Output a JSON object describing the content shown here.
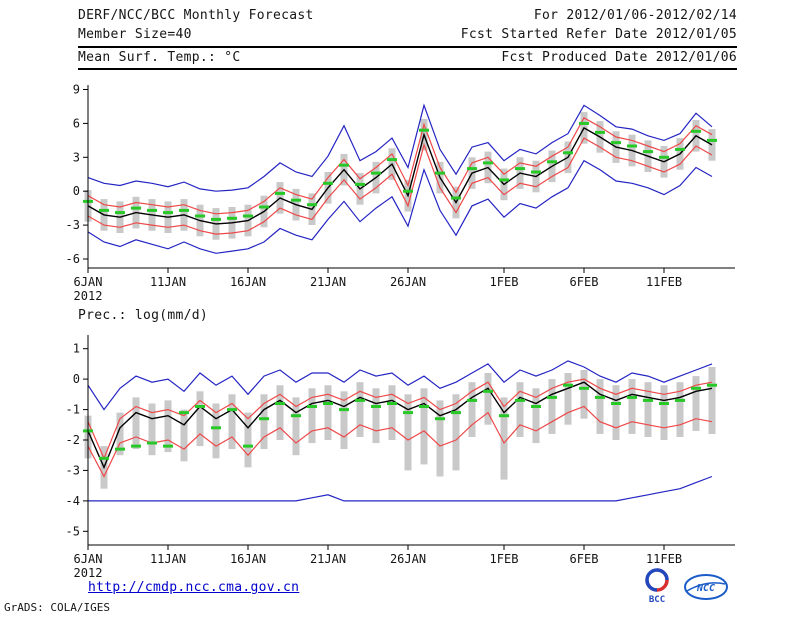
{
  "header": {
    "title": "DERF/NCC/BCC Monthly Forecast",
    "subtitle": "Member Size=40",
    "temp_label": "Mean Surf. Temp.: °C",
    "for_range": "For 2012/01/06-2012/02/14",
    "fcst_started": "Fcst Started Refer Date 2012/01/05",
    "fcst_produced": "Fcst Produced Date 2012/01/06"
  },
  "precip_label": "Prec.: log(mm/d)",
  "footer": {
    "link": "http://cmdp.ncc.cma.gov.cn",
    "credit": "GrADS: COLA/IGES",
    "logos": [
      {
        "label": "BCC"
      },
      {
        "label": "NCC"
      }
    ]
  },
  "colors": {
    "blue": "#2424c3",
    "red": "#ef4848",
    "black": "#000000",
    "green": "#28c828",
    "bar": "#c9c9c9",
    "axis": "#000000",
    "link": "#0000cc"
  },
  "chart_data": [
    {
      "type": "line",
      "title": "Mean Surf. Temp.: °C",
      "ylim": [
        -6.8,
        9.4
      ],
      "yticks": [
        9,
        6,
        3,
        0,
        -3,
        -6
      ],
      "n": 40,
      "year_label": "2012",
      "xticks": [
        {
          "i": 0,
          "label": "6JAN"
        },
        {
          "i": 5,
          "label": "11JAN"
        },
        {
          "i": 10,
          "label": "16JAN"
        },
        {
          "i": 15,
          "label": "21JAN"
        },
        {
          "i": 20,
          "label": "26JAN"
        },
        {
          "i": 26,
          "label": "1FEB"
        },
        {
          "i": 31,
          "label": "6FEB"
        },
        {
          "i": 36,
          "label": "11FEB"
        }
      ],
      "series": [
        {
          "name": "ens-max",
          "color": "blue",
          "style": "line",
          "values": [
            1.2,
            0.7,
            0.5,
            0.9,
            0.7,
            0.4,
            0.8,
            0.2,
            0.0,
            0.1,
            0.3,
            1.3,
            2.5,
            1.7,
            1.3,
            3.1,
            5.8,
            2.7,
            3.5,
            4.7,
            2.1,
            7.6,
            3.7,
            1.5,
            3.9,
            4.3,
            2.7,
            3.7,
            3.3,
            4.3,
            5.1,
            7.6,
            6.7,
            5.7,
            5.5,
            4.9,
            4.5,
            5.1,
            6.9,
            5.7
          ]
        },
        {
          "name": "ens-min",
          "color": "blue",
          "style": "line",
          "values": [
            -3.6,
            -4.5,
            -4.9,
            -4.3,
            -4.7,
            -5.1,
            -4.5,
            -5.1,
            -5.5,
            -5.3,
            -5.1,
            -4.5,
            -3.3,
            -3.9,
            -4.3,
            -2.5,
            -0.9,
            -2.7,
            -1.5,
            -0.5,
            -3.1,
            1.9,
            -1.7,
            -3.9,
            -1.3,
            -0.7,
            -2.3,
            -1.1,
            -1.5,
            -0.5,
            0.3,
            2.7,
            1.9,
            0.9,
            0.7,
            0.3,
            -0.3,
            0.5,
            2.1,
            1.3
          ]
        },
        {
          "name": "ens-upper",
          "color": "red",
          "style": "line",
          "values": [
            -0.4,
            -1.2,
            -1.4,
            -1.0,
            -1.2,
            -1.4,
            -1.2,
            -1.7,
            -2.0,
            -1.9,
            -1.7,
            -0.9,
            0.3,
            -0.3,
            -0.7,
            1.2,
            2.8,
            1.1,
            2.1,
            3.3,
            0.5,
            5.9,
            2.1,
            -0.1,
            2.5,
            3.0,
            1.5,
            2.5,
            2.2,
            3.1,
            3.9,
            6.5,
            5.7,
            4.8,
            4.5,
            4.0,
            3.5,
            4.2,
            5.8,
            5.0
          ]
        },
        {
          "name": "ens-lower",
          "color": "red",
          "style": "line",
          "values": [
            -2.2,
            -3.0,
            -3.2,
            -2.8,
            -3.0,
            -3.2,
            -3.0,
            -3.5,
            -3.8,
            -3.7,
            -3.5,
            -2.7,
            -1.5,
            -2.1,
            -2.5,
            -0.6,
            1.0,
            -0.7,
            0.3,
            1.5,
            -1.3,
            4.1,
            0.3,
            -1.9,
            0.7,
            1.2,
            -0.3,
            0.7,
            0.4,
            1.3,
            2.1,
            4.7,
            3.9,
            3.0,
            2.7,
            2.2,
            1.7,
            2.4,
            4.0,
            3.2
          ]
        },
        {
          "name": "ens-mean",
          "color": "black",
          "style": "line",
          "values": [
            -1.3,
            -2.1,
            -2.3,
            -1.9,
            -2.1,
            -2.3,
            -2.1,
            -2.6,
            -2.9,
            -2.8,
            -2.6,
            -1.8,
            -0.6,
            -1.2,
            -1.6,
            0.3,
            1.9,
            0.2,
            1.2,
            2.4,
            -0.4,
            5.0,
            1.2,
            -1.0,
            1.6,
            2.1,
            0.6,
            1.6,
            1.3,
            2.2,
            3.0,
            5.6,
            4.8,
            3.9,
            3.6,
            3.1,
            2.6,
            3.3,
            4.9,
            4.1
          ]
        },
        {
          "name": "ens-median",
          "color": "green",
          "style": "dashes",
          "values": [
            -0.9,
            -1.7,
            -1.9,
            -1.5,
            -1.7,
            -1.9,
            -1.7,
            -2.2,
            -2.5,
            -2.4,
            -2.2,
            -1.4,
            -0.2,
            -0.8,
            -1.2,
            0.7,
            2.3,
            0.6,
            1.6,
            2.8,
            0.0,
            5.4,
            1.6,
            -0.6,
            2.0,
            2.5,
            1.0,
            2.0,
            1.7,
            2.6,
            3.4,
            6.0,
            5.2,
            4.3,
            4.0,
            3.5,
            3.0,
            3.7,
            5.3,
            4.5
          ]
        }
      ],
      "bars": {
        "color": "bar",
        "top": [
          0.1,
          -0.7,
          -0.9,
          -0.5,
          -0.7,
          -0.9,
          -0.7,
          -1.2,
          -1.5,
          -1.4,
          -1.2,
          -0.4,
          0.8,
          0.2,
          -0.2,
          1.7,
          3.3,
          1.6,
          2.6,
          3.8,
          1.0,
          6.4,
          2.6,
          0.4,
          3.0,
          3.5,
          2.0,
          3.0,
          2.7,
          3.6,
          4.4,
          7.0,
          6.2,
          5.3,
          5.0,
          4.5,
          4.0,
          4.7,
          6.3,
          5.5
        ],
        "bottom": [
          -2.7,
          -3.5,
          -3.7,
          -3.3,
          -3.5,
          -3.7,
          -3.5,
          -4.0,
          -4.3,
          -4.2,
          -4.0,
          -3.2,
          -2.0,
          -2.6,
          -3.0,
          -1.1,
          0.5,
          -1.2,
          -0.2,
          1.0,
          -1.8,
          3.6,
          -0.2,
          -2.4,
          0.2,
          0.7,
          -0.8,
          0.2,
          -0.1,
          0.8,
          1.6,
          4.2,
          3.4,
          2.5,
          2.2,
          1.7,
          1.2,
          1.9,
          3.5,
          2.7
        ]
      }
    },
    {
      "type": "line",
      "title": "Prec.: log(mm/d)",
      "ylim": [
        -5.45,
        1.45
      ],
      "yticks": [
        1,
        0,
        -1,
        -2,
        -3,
        -4,
        -5
      ],
      "n": 40,
      "year_label": "2012",
      "xticks": [
        {
          "i": 0,
          "label": "6JAN"
        },
        {
          "i": 5,
          "label": "11JAN"
        },
        {
          "i": 10,
          "label": "16JAN"
        },
        {
          "i": 15,
          "label": "21JAN"
        },
        {
          "i": 20,
          "label": "26JAN"
        },
        {
          "i": 26,
          "label": "1FEB"
        },
        {
          "i": 31,
          "label": "6FEB"
        },
        {
          "i": 36,
          "label": "11FEB"
        }
      ],
      "series": [
        {
          "name": "ens-max",
          "color": "blue",
          "style": "line",
          "values": [
            -0.2,
            -1.0,
            -0.3,
            0.1,
            -0.1,
            0.0,
            -0.4,
            0.2,
            -0.2,
            0.1,
            -0.5,
            0.1,
            0.3,
            -0.1,
            0.2,
            0.2,
            -0.1,
            0.3,
            0.1,
            0.2,
            -0.2,
            0.1,
            -0.3,
            -0.1,
            0.2,
            0.5,
            -0.1,
            0.3,
            0.1,
            0.3,
            0.6,
            0.4,
            0.1,
            -0.1,
            0.2,
            0.1,
            -0.1,
            0.1,
            0.3,
            0.5
          ]
        },
        {
          "name": "ens-min",
          "color": "blue",
          "style": "line",
          "values": [
            -4.0,
            -4.0,
            -4.0,
            -4.0,
            -4.0,
            -4.0,
            -4.0,
            -4.0,
            -4.0,
            -4.0,
            -4.0,
            -4.0,
            -4.0,
            -4.0,
            -3.9,
            -3.8,
            -4.0,
            -4.0,
            -4.0,
            -4.0,
            -4.0,
            -4.0,
            -4.0,
            -4.0,
            -4.0,
            -4.0,
            -4.0,
            -4.0,
            -4.0,
            -4.0,
            -4.0,
            -4.0,
            -4.0,
            -4.0,
            -3.9,
            -3.8,
            -3.7,
            -3.6,
            -3.4,
            -3.2
          ]
        },
        {
          "name": "ens-upper",
          "color": "red",
          "style": "line",
          "values": [
            -1.4,
            -2.6,
            -1.3,
            -0.9,
            -1.1,
            -1.0,
            -1.2,
            -0.7,
            -1.1,
            -0.8,
            -1.3,
            -0.8,
            -0.5,
            -0.9,
            -0.6,
            -0.5,
            -0.7,
            -0.4,
            -0.6,
            -0.5,
            -0.8,
            -0.6,
            -1.0,
            -0.8,
            -0.4,
            -0.1,
            -0.9,
            -0.4,
            -0.6,
            -0.3,
            -0.1,
            0.0,
            -0.3,
            -0.5,
            -0.3,
            -0.4,
            -0.5,
            -0.4,
            -0.2,
            -0.1
          ]
        },
        {
          "name": "ens-lower",
          "color": "red",
          "style": "line",
          "values": [
            -2.2,
            -3.2,
            -2.1,
            -1.9,
            -2.1,
            -2.0,
            -2.3,
            -1.8,
            -2.2,
            -1.9,
            -2.5,
            -1.9,
            -1.6,
            -2.1,
            -1.7,
            -1.6,
            -1.9,
            -1.5,
            -1.7,
            -1.6,
            -2.0,
            -1.7,
            -2.2,
            -2.0,
            -1.5,
            -1.1,
            -2.1,
            -1.5,
            -1.7,
            -1.4,
            -1.1,
            -0.9,
            -1.4,
            -1.6,
            -1.4,
            -1.5,
            -1.6,
            -1.5,
            -1.3,
            -1.4
          ]
        },
        {
          "name": "ens-mean",
          "color": "black",
          "style": "line",
          "values": [
            -1.7,
            -2.9,
            -1.6,
            -1.1,
            -1.3,
            -1.2,
            -1.5,
            -0.9,
            -1.3,
            -1.0,
            -1.6,
            -1.0,
            -0.7,
            -1.1,
            -0.8,
            -0.7,
            -0.9,
            -0.6,
            -0.8,
            -0.7,
            -1.0,
            -0.8,
            -1.2,
            -1.0,
            -0.6,
            -0.3,
            -1.1,
            -0.6,
            -0.8,
            -0.5,
            -0.3,
            -0.1,
            -0.5,
            -0.7,
            -0.5,
            -0.6,
            -0.7,
            -0.6,
            -0.4,
            -0.3
          ]
        },
        {
          "name": "ens-median",
          "color": "green",
          "style": "dashes",
          "values": [
            -1.7,
            -2.6,
            -2.3,
            -2.2,
            -2.1,
            -2.2,
            -1.1,
            -0.9,
            -1.6,
            -1.0,
            -2.2,
            -1.3,
            -0.8,
            -1.2,
            -0.9,
            -0.8,
            -1.0,
            -0.7,
            -0.9,
            -0.8,
            -1.1,
            -0.9,
            -1.3,
            -1.1,
            -0.7,
            -0.4,
            -1.2,
            -0.7,
            -0.9,
            -0.6,
            -0.2,
            -0.3,
            -0.6,
            -0.8,
            -0.6,
            -0.7,
            -0.8,
            -0.7,
            -0.3,
            -0.2
          ]
        }
      ],
      "bars": {
        "color": "bar",
        "top": [
          -1.2,
          -2.2,
          -1.1,
          -0.6,
          -0.8,
          -0.7,
          -1.0,
          -0.4,
          -0.8,
          -0.5,
          -1.1,
          -0.5,
          -0.2,
          -0.6,
          -0.3,
          -0.2,
          -0.4,
          -0.1,
          -0.3,
          -0.2,
          -0.5,
          -0.3,
          -0.7,
          -0.5,
          -0.1,
          0.2,
          -0.6,
          -0.1,
          -0.3,
          0.0,
          0.2,
          0.3,
          0.0,
          -0.2,
          0.0,
          -0.1,
          -0.2,
          -0.1,
          0.1,
          0.4
        ],
        "bottom": [
          -2.6,
          -3.6,
          -2.5,
          -2.3,
          -2.5,
          -2.4,
          -2.7,
          -2.2,
          -2.6,
          -2.3,
          -2.9,
          -2.3,
          -2.0,
          -2.5,
          -2.1,
          -2.0,
          -2.3,
          -1.9,
          -2.1,
          -2.0,
          -3.0,
          -2.8,
          -3.2,
          -3.0,
          -1.9,
          -1.5,
          -3.3,
          -1.9,
          -2.1,
          -1.8,
          -1.5,
          -1.3,
          -1.8,
          -2.0,
          -1.8,
          -1.9,
          -2.0,
          -1.9,
          -1.7,
          -1.8
        ]
      }
    }
  ]
}
